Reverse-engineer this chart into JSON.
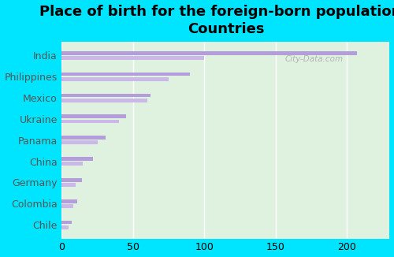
{
  "title": "Place of birth for the foreign-born population -\nCountries",
  "categories": [
    "India",
    "Philippines",
    "Mexico",
    "Ukraine",
    "Panama",
    "China",
    "Germany",
    "Colombia",
    "Chile"
  ],
  "values1": [
    207,
    90,
    62,
    45,
    31,
    22,
    14,
    11,
    7
  ],
  "values2": [
    100,
    75,
    60,
    40,
    25,
    15,
    10,
    8,
    5
  ],
  "bar_color1": "#b39ddb",
  "bar_color2": "#c9b8e8",
  "background_outer": "#00e5ff",
  "background_inner": "#dff2e0",
  "xlim": [
    0,
    230
  ],
  "xticks": [
    0,
    50,
    100,
    150,
    200
  ],
  "title_fontsize": 13,
  "label_fontsize": 9,
  "tick_fontsize": 9,
  "label_color": "#555555",
  "watermark": "City-Data.com"
}
